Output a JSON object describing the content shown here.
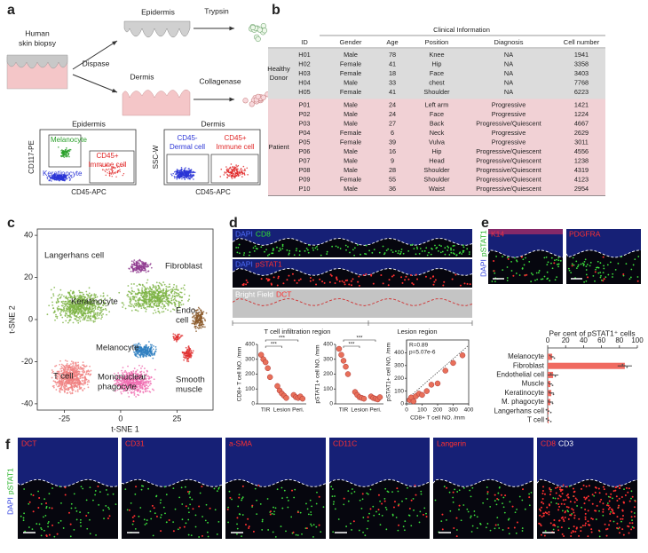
{
  "panel_labels": [
    "a",
    "b",
    "c",
    "d",
    "e",
    "f"
  ],
  "a": {
    "biopsy": [
      "Human",
      "skin biopsy"
    ],
    "dispase": "Dispase",
    "epidermis": "Epidermis",
    "dermis": "Dermis",
    "trypsin": "Trypsin",
    "collagenase": "Collagenase",
    "flow": [
      {
        "title": "Epidermis",
        "ylabel": "CD117-PE",
        "xlabel": "CD45-APC",
        "gates": [
          {
            "text": [
              "Melanocyte"
            ],
            "color": "#2ca02c"
          },
          {
            "text": [
              "Keratinocyte"
            ],
            "color": "#2b35d6"
          },
          {
            "text": [
              "CD45+",
              "Immune cell"
            ],
            "color": "#e02424"
          }
        ]
      },
      {
        "title": "Dermis",
        "ylabel": "SSC-W",
        "xlabel": "CD45-APC",
        "gates": [
          {
            "text": [
              "CD45-",
              "Dermal cell"
            ],
            "color": "#2b35d6"
          },
          {
            "text": [
              "CD45+",
              "Immune cell"
            ],
            "color": "#e02424"
          }
        ]
      }
    ]
  },
  "b": {
    "caption": "Clinical Information",
    "columns": [
      "ID",
      "Gender",
      "Age",
      "Position",
      "Diagnosis",
      "Cell number"
    ],
    "groups": [
      {
        "name": [
          "Healthy",
          "Donor"
        ],
        "rows": [
          [
            "H01",
            "Male",
            78,
            "Knee",
            "NA",
            1941
          ],
          [
            "H02",
            "Female",
            41,
            "Hip",
            "NA",
            3358
          ],
          [
            "H03",
            "Female",
            18,
            "Face",
            "NA",
            3403
          ],
          [
            "H04",
            "Male",
            33,
            "chest",
            "NA",
            7768
          ],
          [
            "H05",
            "Female",
            41,
            "Shoulder",
            "NA",
            6223
          ]
        ]
      },
      {
        "name": [
          "Patient"
        ],
        "rows": [
          [
            "P01",
            "Male",
            24,
            "Left arm",
            "Progressive",
            1421
          ],
          [
            "P02",
            "Male",
            24,
            "Face",
            "Progressive",
            1224
          ],
          [
            "P03",
            "Male",
            27,
            "Back",
            "Progressive/Quiescent",
            4667
          ],
          [
            "P04",
            "Female",
            6,
            "Neck",
            "Progressive",
            2629
          ],
          [
            "P05",
            "Female",
            39,
            "Vulva",
            "Progressive",
            3011
          ],
          [
            "P06",
            "Male",
            16,
            "Hip",
            "Progressive/Quiescent",
            4556
          ],
          [
            "P07",
            "Male",
            9,
            "Head",
            "Progressive/Quiescent",
            1238
          ],
          [
            "P08",
            "Male",
            28,
            "Shoulder",
            "Progressive/Quiescent",
            4319
          ],
          [
            "P09",
            "Female",
            55,
            "Shoulder",
            "Progressive/Quiescent",
            4123
          ],
          [
            "P10",
            "Male",
            36,
            "Waist",
            "Progressive/Quiescent",
            2954
          ]
        ]
      }
    ]
  },
  "c": {
    "xlabel": "t-SNE 1",
    "ylabel": "t-SNE 2",
    "xlim": [
      -37,
      41
    ],
    "ylim": [
      -43,
      43
    ],
    "xticks": [
      -25,
      0,
      25
    ],
    "yticks": [
      40,
      20,
      0,
      -20,
      -40
    ],
    "clusters": [
      {
        "name": [
          "Langerhans cell"
        ],
        "color": "#8e3a8e"
      },
      {
        "name": [
          "Keratinocyte"
        ],
        "color": "#7cb342"
      },
      {
        "name": [
          "Fibroblast"
        ],
        "color": "#8b5a2b"
      },
      {
        "name": [
          "Endo.",
          "cell"
        ],
        "color": "#e03030"
      },
      {
        "name": [
          "Melanocyte"
        ],
        "color": "#2f7fc1"
      },
      {
        "name": [
          "T cell"
        ],
        "color": "#f08080"
      },
      {
        "name": [
          "Mononuclear",
          "phagocyte"
        ],
        "color": "#f06bb0"
      },
      {
        "name": [
          "Smooth",
          "muscle"
        ],
        "color": "#e03030"
      }
    ]
  },
  "d": {
    "images": [
      [
        {
          "text": "DAPI",
          "color": "#5070ff"
        },
        {
          "text": "CD8",
          "color": "#30e030"
        }
      ],
      [
        {
          "text": "DAPI",
          "color": "#5070ff"
        },
        {
          "text": "pSTAT1",
          "color": "#ff3030"
        }
      ],
      [
        {
          "text": "Bright Field",
          "color": "#ffffff"
        },
        {
          "text": "DCT",
          "color": "#ff3030"
        }
      ]
    ],
    "regions": [
      "T cell infiltration region",
      "Lesion region"
    ],
    "plots": [
      {
        "ylabel": "CD8+ T cell NO. /mm",
        "categories": [
          "TIR",
          "Lesion",
          "Peri."
        ],
        "ylim": [
          0,
          400
        ],
        "yticks": [
          0,
          100,
          200,
          300,
          400
        ],
        "values": [
          [
            330,
            300,
            280,
            240,
            180
          ],
          [
            120,
            90,
            70,
            55,
            40
          ],
          [
            60,
            45,
            40,
            50,
            35
          ]
        ],
        "sig": [
          "***",
          "***"
        ],
        "color": "#e8705a"
      },
      {
        "ylabel": "pSTAT1+ cell NO. /mm",
        "categories": [
          "TIR",
          "Lesion",
          "Peri."
        ],
        "ylim": [
          0,
          400
        ],
        "yticks": [
          0,
          100,
          200,
          300,
          400
        ],
        "values": [
          [
            370,
            330,
            290,
            250,
            200
          ],
          [
            80,
            60,
            45,
            40,
            35
          ],
          [
            50,
            40,
            35,
            30,
            45
          ]
        ],
        "sig": [
          "***",
          "***"
        ],
        "color": "#e8705a"
      },
      {
        "ylabel": "pSTAT1+ cell NO. /mm",
        "xlabel": "CD8+ T cell NO. /mm",
        "xlim": [
          0,
          400
        ],
        "xticks": [
          0,
          100,
          200,
          300,
          400
        ],
        "ylim": [
          0,
          500
        ],
        "yticks": [
          0,
          100,
          200,
          300,
          400
        ],
        "x": [
          20,
          30,
          45,
          60,
          80,
          100,
          130,
          160,
          200,
          250,
          300,
          360
        ],
        "y": [
          30,
          50,
          20,
          60,
          80,
          70,
          100,
          150,
          160,
          260,
          320,
          380
        ],
        "annotations": [
          "R=0.89",
          "p=5.07e-6"
        ],
        "color": "#e8705a"
      }
    ]
  },
  "e": {
    "images": [
      [
        {
          "text": "K14",
          "color": "#ff3030"
        }
      ],
      [
        {
          "text": "PDGFRA",
          "color": "#ff3030"
        }
      ]
    ],
    "side": [
      {
        "text": "DAPI",
        "color": "#3040e0"
      },
      {
        "text": "pSTAT1",
        "color": "#20b020"
      }
    ],
    "chart": {
      "title": "Per cent of pSTAT1⁺ cells",
      "categories": [
        "Melanocyte",
        "Fibroblast",
        "Endothelial cell",
        "Muscle",
        "Keratinocyte",
        "M. phagocyte",
        "Langerhans cell",
        "T cell"
      ],
      "values": [
        5,
        86,
        6,
        3,
        4,
        3,
        1,
        1
      ],
      "errors": [
        2,
        8,
        6,
        2,
        3,
        3,
        1,
        1
      ],
      "xlim": [
        0,
        100
      ],
      "xticks": [
        0,
        20,
        40,
        60,
        80,
        100
      ],
      "color": "#f06a60"
    }
  },
  "f": {
    "side": [
      {
        "text": "DAPI",
        "color": "#3040e0"
      },
      {
        "text": "pSTAT1",
        "color": "#20b020"
      }
    ],
    "images": [
      [
        {
          "text": "DCT",
          "color": "#ff3030"
        }
      ],
      [
        {
          "text": "CD31",
          "color": "#ff3030"
        }
      ],
      [
        {
          "text": "a-SMA",
          "color": "#ff3030"
        }
      ],
      [
        {
          "text": "CD11C",
          "color": "#ff3030"
        }
      ],
      [
        {
          "text": "Langerin",
          "color": "#ff3030"
        }
      ],
      [
        {
          "text": "CD8",
          "color": "#ff3030"
        },
        {
          "text": "CD3",
          "color": "#ffffff"
        }
      ]
    ]
  }
}
